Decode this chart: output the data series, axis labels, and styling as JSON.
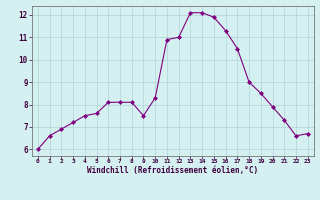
{
  "x": [
    0,
    1,
    2,
    3,
    4,
    5,
    6,
    7,
    8,
    9,
    10,
    11,
    12,
    13,
    14,
    15,
    16,
    17,
    18,
    19,
    20,
    21,
    22,
    23
  ],
  "y": [
    6.0,
    6.6,
    6.9,
    7.2,
    7.5,
    7.6,
    8.1,
    8.1,
    8.1,
    7.5,
    8.3,
    10.9,
    11.0,
    12.1,
    12.1,
    11.9,
    11.3,
    10.5,
    9.0,
    8.5,
    7.9,
    7.3,
    6.6,
    6.7
  ],
  "line_color": "#800080",
  "marker": "D",
  "marker_size": 2,
  "bg_color": "#d4f0f0",
  "grid_color": "#b0d4d4",
  "xlabel": "Windchill (Refroidissement éolien,°C)",
  "xlim": [
    -0.5,
    23.5
  ],
  "ylim": [
    5.7,
    12.4
  ],
  "yticks": [
    6,
    7,
    8,
    9,
    10,
    11,
    12
  ],
  "xticks": [
    0,
    1,
    2,
    3,
    4,
    5,
    6,
    7,
    8,
    9,
    10,
    11,
    12,
    13,
    14,
    15,
    16,
    17,
    18,
    19,
    20,
    21,
    22,
    23
  ]
}
